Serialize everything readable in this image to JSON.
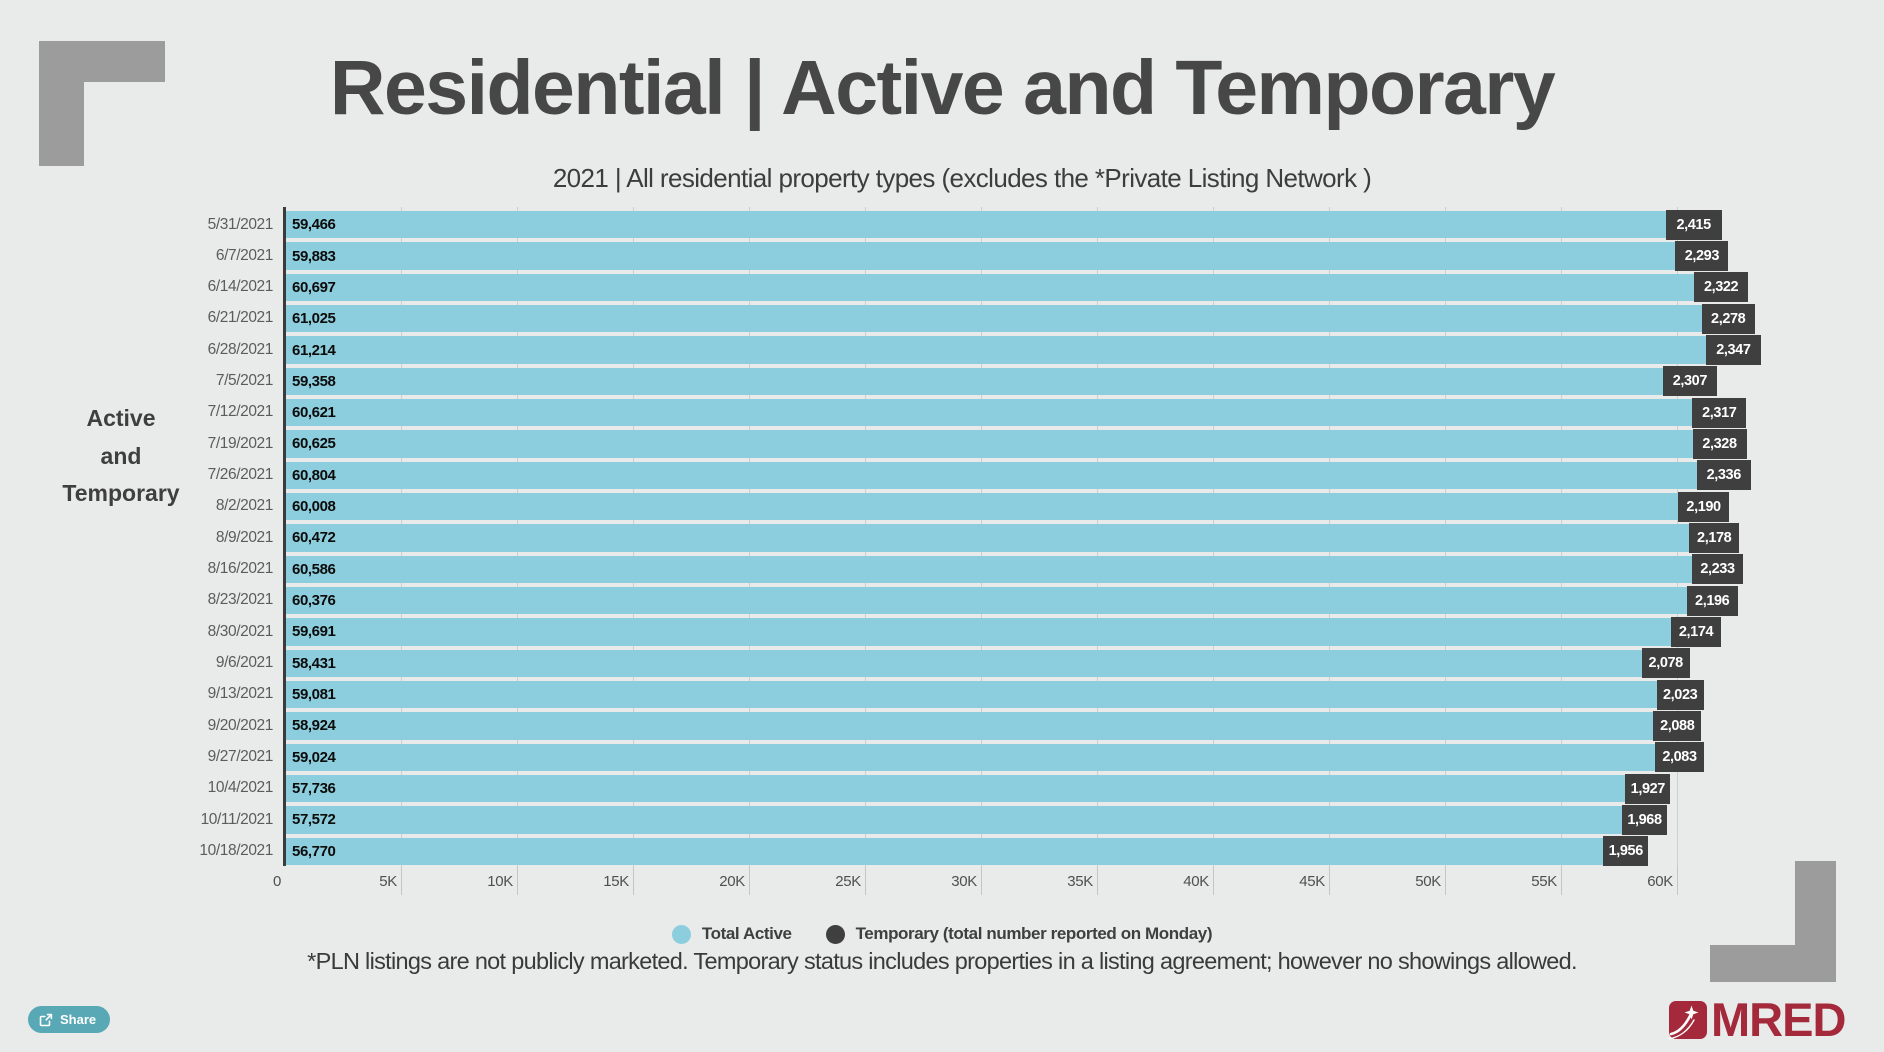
{
  "chart_data": {
    "type": "bar",
    "orientation": "horizontal",
    "stacked": true,
    "title": "Residential | Active and Temporary",
    "subtitle": "2021 | All residential property types (excludes the *Private Listing Network )",
    "ylabel": "Active and Temporary",
    "ylabel_lines": [
      "Active",
      "and",
      "Temporary"
    ],
    "categories": [
      "5/31/2021",
      "6/7/2021",
      "6/14/2021",
      "6/21/2021",
      "6/28/2021",
      "7/5/2021",
      "7/12/2021",
      "7/19/2021",
      "7/26/2021",
      "8/2/2021",
      "8/9/2021",
      "8/16/2021",
      "8/23/2021",
      "8/30/2021",
      "9/6/2021",
      "9/13/2021",
      "9/20/2021",
      "9/27/2021",
      "10/4/2021",
      "10/11/2021",
      "10/18/2021"
    ],
    "series": [
      {
        "name": "Total Active",
        "color": "#8CCEDD",
        "values": [
          59466,
          59883,
          60697,
          61025,
          61214,
          59358,
          60621,
          60625,
          60804,
          60008,
          60472,
          60586,
          60376,
          59691,
          58431,
          59081,
          58924,
          59024,
          57736,
          57572,
          56770
        ]
      },
      {
        "name": "Temporary (total number reported on Monday)",
        "color": "#3F3F3F",
        "values": [
          2415,
          2293,
          2322,
          2278,
          2347,
          2307,
          2317,
          2328,
          2336,
          2190,
          2178,
          2233,
          2196,
          2174,
          2078,
          2023,
          2088,
          2083,
          1927,
          1968,
          1956
        ]
      }
    ],
    "x_ticks": [
      "0",
      "5K",
      "10K",
      "15K",
      "20K",
      "25K",
      "30K",
      "35K",
      "40K",
      "45K",
      "50K",
      "55K",
      "60K"
    ],
    "xlim": [
      0,
      64000
    ],
    "grid": true,
    "legend_position": "bottom",
    "value_labels": true
  },
  "footnote": "*PLN listings are not publicly marketed. Temporary status includes properties in a listing agreement; however no showings allowed.",
  "share_button": {
    "label": "Share"
  },
  "logo": {
    "text": "MRED"
  },
  "colors": {
    "background": "#E9EAEA",
    "bar_active": "#8CCEDD",
    "bar_temporary": "#3F3F3F",
    "share_teal": "#58A8B5",
    "brand_red": "#A4293B",
    "bracket_gray": "#9C9C9C",
    "gridline": "#CBCFCF",
    "axis": "#3B3B3B"
  }
}
